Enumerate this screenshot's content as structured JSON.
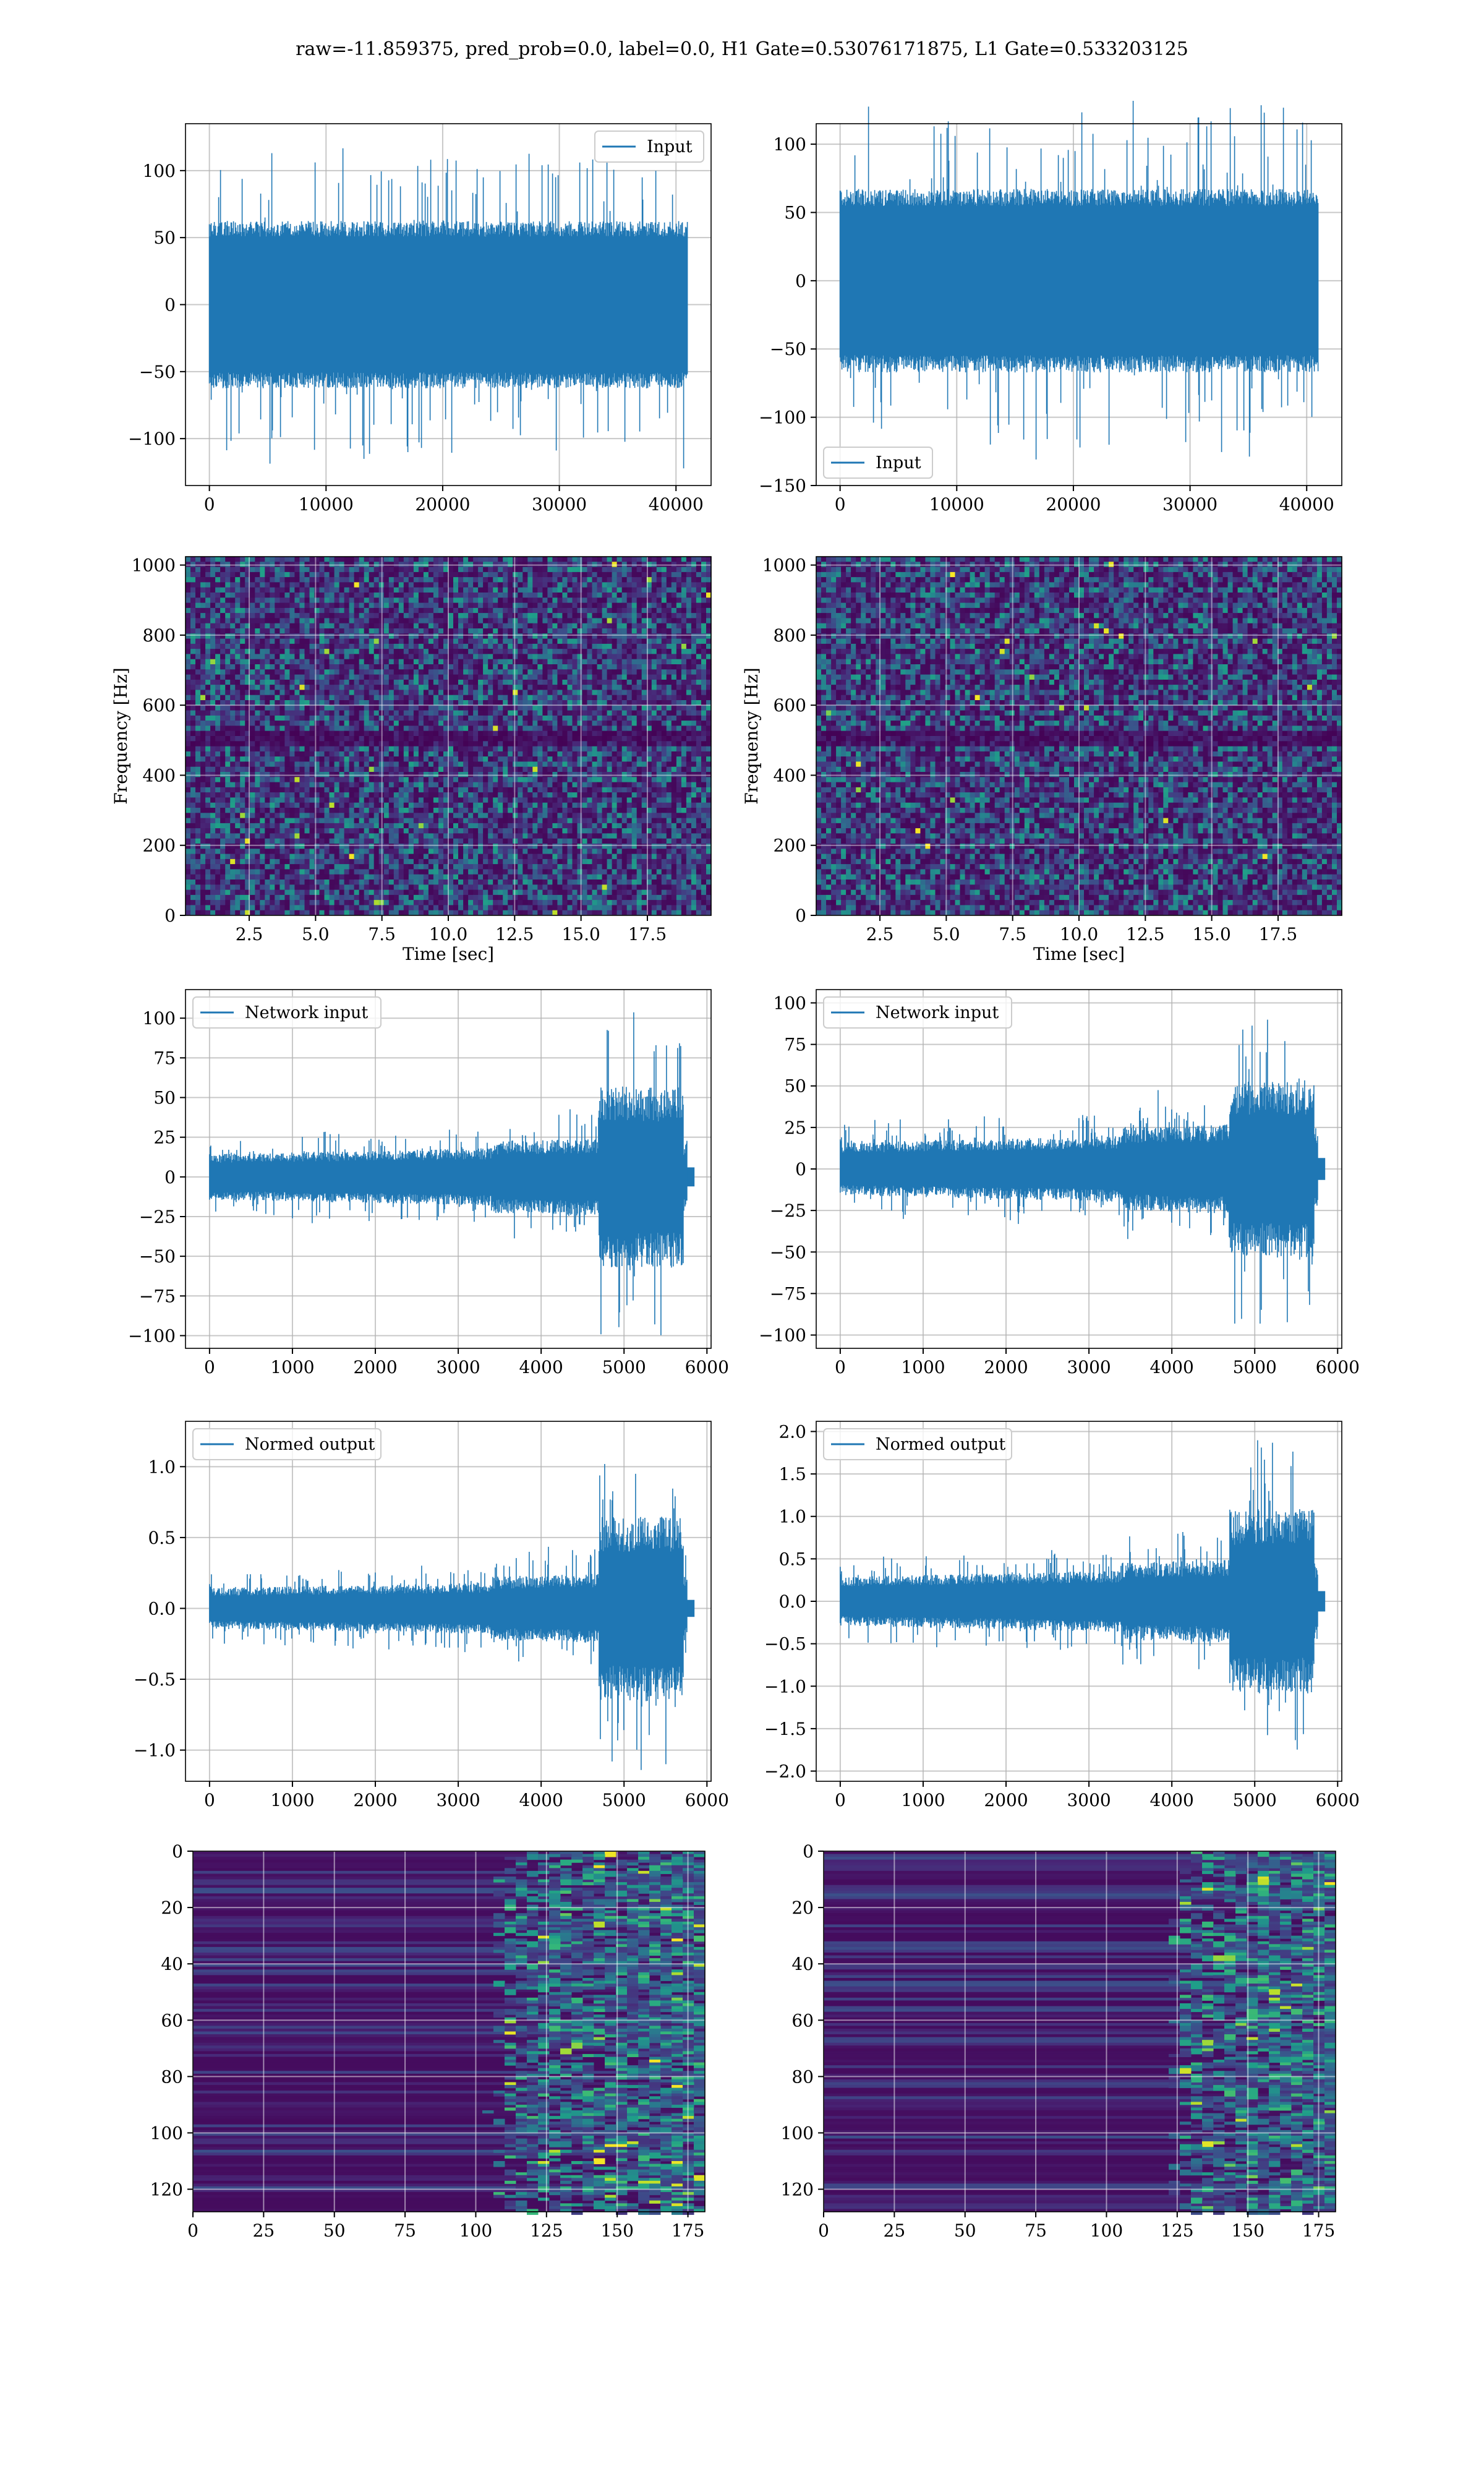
{
  "figure": {
    "suptitle": "raw=-11.859375, pred_prob=0.0, label=0.0, H1 Gate=0.53076171875, L1 Gate=0.533203125"
  },
  "colors": {
    "line": "#1f77b4",
    "grid": "#b0b0b0",
    "axes_edge": "#000000",
    "viridis_low": "#440154",
    "viridis_mid": "#21918c",
    "viridis_high": "#fde725"
  },
  "chart_data": [
    {
      "id": "h1-input",
      "type": "line",
      "panel": "row1-left",
      "series": [
        {
          "name": "Input",
          "x_range": [
            0,
            40960
          ],
          "amplitude_typical": 65,
          "amplitude_peak": 125
        }
      ],
      "xlim": [
        -2048,
        43008
      ],
      "ylim": [
        -135,
        135
      ],
      "xticks": [
        0,
        10000,
        20000,
        30000,
        40000
      ],
      "yticks": [
        -100,
        -50,
        0,
        50,
        100
      ],
      "xlabel": "",
      "ylabel": "",
      "legend": "upper right",
      "grid": true
    },
    {
      "id": "l1-input",
      "type": "line",
      "panel": "row1-right",
      "series": [
        {
          "name": "Input",
          "x_range": [
            0,
            40960
          ],
          "amplitude_typical": 70,
          "amplitude_peak": 140
        }
      ],
      "xlim": [
        -2048,
        43008
      ],
      "ylim": [
        -150,
        115
      ],
      "xticks": [
        0,
        10000,
        20000,
        30000,
        40000
      ],
      "yticks": [
        -150,
        -100,
        -50,
        0,
        50,
        100
      ],
      "xlabel": "",
      "ylabel": "",
      "legend": "lower left",
      "grid": true
    },
    {
      "id": "h1-spectrogram",
      "type": "heatmap",
      "panel": "row2-left",
      "xlim": [
        0.1,
        19.9
      ],
      "ylim": [
        0,
        1024
      ],
      "xticks": [
        2.5,
        5.0,
        7.5,
        10.0,
        12.5,
        15.0,
        17.5
      ],
      "yticks": [
        0,
        200,
        400,
        600,
        800,
        1000
      ],
      "xlabel": "Time [sec]",
      "ylabel": "Frequency [Hz]",
      "dark_band_hz": [
        490,
        520
      ],
      "grid": true
    },
    {
      "id": "l1-spectrogram",
      "type": "heatmap",
      "panel": "row2-right",
      "xlim": [
        0.1,
        19.9
      ],
      "ylim": [
        0,
        1024
      ],
      "xticks": [
        2.5,
        5.0,
        7.5,
        10.0,
        12.5,
        15.0,
        17.5
      ],
      "yticks": [
        0,
        200,
        400,
        600,
        800,
        1000
      ],
      "xlabel": "Time [sec]",
      "ylabel": "Frequency [Hz]",
      "dark_band_hz": [
        490,
        520
      ],
      "grid": true
    },
    {
      "id": "h1-network-input",
      "type": "line",
      "panel": "row3-left",
      "series": [
        {
          "name": "Network input",
          "x_range": [
            0,
            5760
          ],
          "burst_start": 4700,
          "amplitude_early": 20,
          "amplitude_peak": 105
        }
      ],
      "xlim": [
        -290,
        6050
      ],
      "ylim": [
        -108,
        118
      ],
      "xticks": [
        0,
        1000,
        2000,
        3000,
        4000,
        5000,
        6000
      ],
      "yticks": [
        -100,
        -75,
        -50,
        -25,
        0,
        25,
        50,
        75,
        100
      ],
      "xlabel": "",
      "ylabel": "",
      "legend": "upper left",
      "grid": true
    },
    {
      "id": "l1-network-input",
      "type": "line",
      "panel": "row3-right",
      "series": [
        {
          "name": "Network input",
          "x_range": [
            0,
            5760
          ],
          "burst_start": 4700,
          "amplitude_early": 22,
          "amplitude_peak": 98
        }
      ],
      "xlim": [
        -290,
        6050
      ],
      "ylim": [
        -108,
        108
      ],
      "xticks": [
        0,
        1000,
        2000,
        3000,
        4000,
        5000,
        6000
      ],
      "yticks": [
        -100,
        -75,
        -50,
        -25,
        0,
        25,
        50,
        75,
        100
      ],
      "xlabel": "",
      "ylabel": "",
      "legend": "upper left",
      "grid": true
    },
    {
      "id": "h1-normed-output",
      "type": "line",
      "panel": "row4-left",
      "series": [
        {
          "name": "Normed output",
          "x_range": [
            0,
            5760
          ],
          "burst_start": 4700,
          "amplitude_early": 0.2,
          "amplitude_peak": 1.2
        }
      ],
      "xlim": [
        -290,
        6050
      ],
      "ylim": [
        -1.22,
        1.32
      ],
      "xticks": [
        0,
        1000,
        2000,
        3000,
        4000,
        5000,
        6000
      ],
      "yticks": [
        -1.0,
        -0.5,
        0.0,
        0.5,
        1.0
      ],
      "xlabel": "",
      "ylabel": "",
      "legend": "upper left",
      "grid": true
    },
    {
      "id": "l1-normed-output",
      "type": "line",
      "panel": "row4-right",
      "series": [
        {
          "name": "Normed output",
          "x_range": [
            0,
            5760
          ],
          "burst_start": 4700,
          "amplitude_early": 0.4,
          "amplitude_peak": 2.0
        }
      ],
      "xlim": [
        -290,
        6050
      ],
      "ylim": [
        -2.12,
        2.12
      ],
      "xticks": [
        0,
        1000,
        2000,
        3000,
        4000,
        5000,
        6000
      ],
      "yticks": [
        -2.0,
        -1.5,
        -1.0,
        -0.5,
        0.0,
        0.5,
        1.0,
        1.5,
        2.0
      ],
      "xlabel": "",
      "ylabel": "",
      "legend": "upper left",
      "grid": true
    },
    {
      "id": "h1-feature-map",
      "type": "heatmap",
      "panel": "row5-left",
      "xlim": [
        0,
        181
      ],
      "ylim": [
        128,
        0
      ],
      "xticks": [
        0,
        25,
        50,
        75,
        100,
        125,
        150,
        175
      ],
      "yticks": [
        0,
        20,
        40,
        60,
        80,
        100,
        120
      ],
      "activity_onset": 110,
      "grid": true
    },
    {
      "id": "l1-feature-map",
      "type": "heatmap",
      "panel": "row5-right",
      "xlim": [
        0,
        181
      ],
      "ylim": [
        128,
        0
      ],
      "xticks": [
        0,
        25,
        50,
        75,
        100,
        125,
        150,
        175
      ],
      "yticks": [
        0,
        20,
        40,
        60,
        80,
        100,
        120
      ],
      "activity_onset": 125,
      "grid": true
    }
  ]
}
